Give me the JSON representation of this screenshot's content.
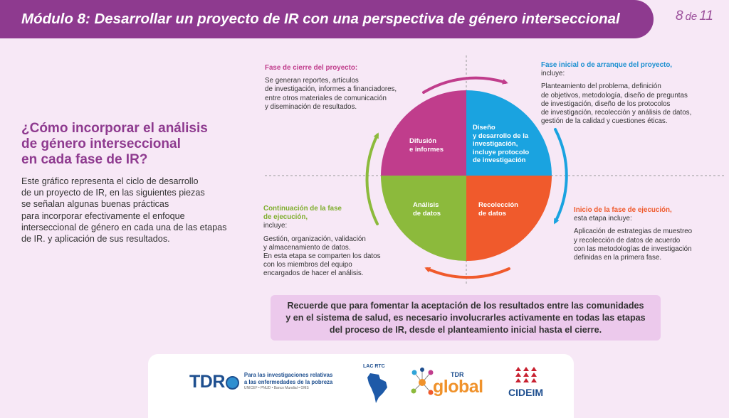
{
  "header": {
    "title": "Módulo 8: Desarrollar un proyecto de IR con una perspectiva de género interseccional",
    "page_current": "8",
    "page_sep": "de",
    "page_total": "11"
  },
  "left": {
    "heading_lines": [
      "¿Cómo incorporar el análisis",
      "de género interseccional",
      "en cada fase de IR?"
    ],
    "desc_lines": [
      "Este gráfico representa el ciclo de desarrollo",
      "de un proyecto de IR, en las siguientes piezas",
      "se señalan algunas buenas prácticas",
      "para incorporar efectivamente el enfoque",
      "interseccional de género en cada una de las etapas",
      "de IR. y aplicación de sus resultados."
    ]
  },
  "diagram": {
    "colors": {
      "top_left": "#c03d8c",
      "top_right": "#1aa3e0",
      "bottom_left": "#8cba3c",
      "bottom_right": "#f05a2c"
    },
    "quadrants": {
      "top_left": [
        "Difusión",
        "e informes"
      ],
      "top_right": [
        "Diseño",
        "y desarrollo de la",
        "investigación,",
        "incluye protocolo",
        "de investigación"
      ],
      "bottom_left": [
        "Análisis",
        "de datos"
      ],
      "bottom_right": [
        "Recolección",
        "de datos"
      ]
    },
    "phases": {
      "closing": {
        "title": "Fase de cierre del proyecto:",
        "body": [
          "Se generan reportes, artículos",
          "de investigación, informes a financiadores,",
          "entre otros materiales de comunicación",
          "y diseminación de resultados."
        ]
      },
      "initial": {
        "title": "Fase inicial o de arranque del proyecto,",
        "subtitle": "incluye:",
        "body": [
          "Planteamiento del problema, definición",
          "de objetivos, metodología, diseño de preguntas",
          "de investigación, diseño de los protocolos",
          "de investigación, recolección y análisis de datos,",
          "gestión de la calidad y cuestiones éticas."
        ]
      },
      "continuation": {
        "title_lines": [
          "Continuación de la fase",
          "de ejecución,"
        ],
        "subtitle": "incluye:",
        "body": [
          "Gestión, organización, validación",
          "y almacenamiento de datos.",
          "En esta etapa se comparten los datos",
          "con los miembros del equipo",
          "encargados de hacer el análisis."
        ]
      },
      "execution": {
        "title": "Inicio de la fase de ejecución,",
        "subtitle": "esta etapa incluye:",
        "body": [
          "Aplicación de estrategias de muestreo",
          "y recolección de datos de acuerdo",
          "con las metodologías de investigación",
          "definidas en la primera fase."
        ]
      }
    }
  },
  "note": {
    "lines": [
      "Recuerde que para fomentar la aceptación de los resultados entre las comunidades",
      "y en el sistema de salud, es necesario involucrarles activamente en todas las etapas",
      "del proceso de IR, desde el planteamiento inicial hasta el cierre."
    ]
  },
  "footer": {
    "tdr_word_left": "TDR",
    "tdr_tag_lines": [
      "Para las investigaciones relativas",
      "a las enfermedades de la pobreza"
    ],
    "tdr_tag_small": "UNICEF • PNUD • Banco Mundial • OMS",
    "lac_title": "LAC RTC",
    "tdrg_small": "TDR",
    "tdrg_word": "global",
    "cideim_name": "CIDEIM"
  }
}
